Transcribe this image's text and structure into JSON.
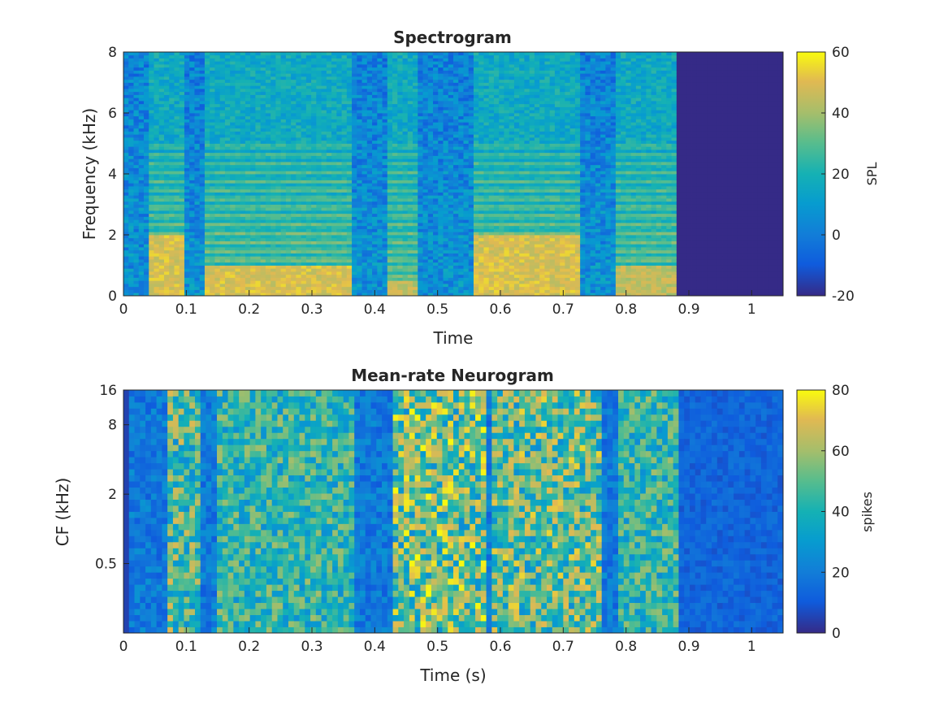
{
  "chart_data": [
    {
      "type": "heatmap",
      "title": "Spectrogram",
      "xlabel": "Time",
      "ylabel": "Frequency (kHz)",
      "xlim": [
        0,
        1.05
      ],
      "ylim": [
        0,
        8
      ],
      "xticks": [
        "0",
        "0.1",
        "0.2",
        "0.3",
        "0.4",
        "0.5",
        "0.6",
        "0.7",
        "0.8",
        "0.9",
        "1"
      ],
      "yticks": [
        "0",
        "2",
        "4",
        "6",
        "8"
      ],
      "colorbar": {
        "label": "SPL",
        "range": [
          -20,
          60
        ],
        "ticks": [
          "-20",
          "0",
          "20",
          "40",
          "60"
        ]
      },
      "colormap": "parula",
      "silence_after_time": 0.88,
      "segments": [
        {
          "time_range": [
            0.04,
            0.1
          ],
          "high_energy_band_kHz": [
            0,
            2
          ],
          "peak_SPL": 55
        },
        {
          "time_range": [
            0.13,
            0.36
          ],
          "high_energy_band_kHz": [
            0,
            1
          ],
          "peak_SPL": 55
        },
        {
          "time_range": [
            0.42,
            0.47
          ],
          "high_energy_band_kHz": [
            0,
            0.5
          ],
          "peak_SPL": 50
        },
        {
          "time_range": [
            0.56,
            0.73
          ],
          "high_energy_band_kHz": [
            0,
            2
          ],
          "peak_SPL": 55
        },
        {
          "time_range": [
            0.78,
            0.88
          ],
          "high_energy_band_kHz": [
            0,
            1
          ],
          "peak_SPL": 50
        }
      ]
    },
    {
      "type": "heatmap",
      "title": "Mean-rate Neurogram",
      "xlabel": "Time (s)",
      "ylabel": "CF (kHz)",
      "xlim": [
        0,
        1.05
      ],
      "ylim": [
        0.125,
        16
      ],
      "yscale": "log",
      "xticks": [
        "0",
        "0.1",
        "0.2",
        "0.3",
        "0.4",
        "0.5",
        "0.6",
        "0.7",
        "0.8",
        "0.9",
        "1"
      ],
      "yticks": [
        "0.5",
        "2",
        "8",
        "16"
      ],
      "colorbar": {
        "label": "spikes",
        "range": [
          0,
          80
        ],
        "ticks": [
          "0",
          "20",
          "40",
          "60",
          "80"
        ]
      },
      "colormap": "parula",
      "segments": [
        {
          "time_range": [
            0.07,
            0.12
          ],
          "peak_spikes": 70
        },
        {
          "time_range": [
            0.15,
            0.37
          ],
          "peak_spikes": 60
        },
        {
          "time_range": [
            0.43,
            0.58
          ],
          "peak_spikes": 80
        },
        {
          "time_range": [
            0.59,
            0.76
          ],
          "peak_spikes": 75
        },
        {
          "time_range": [
            0.79,
            0.88
          ],
          "peak_spikes": 60
        }
      ]
    }
  ]
}
